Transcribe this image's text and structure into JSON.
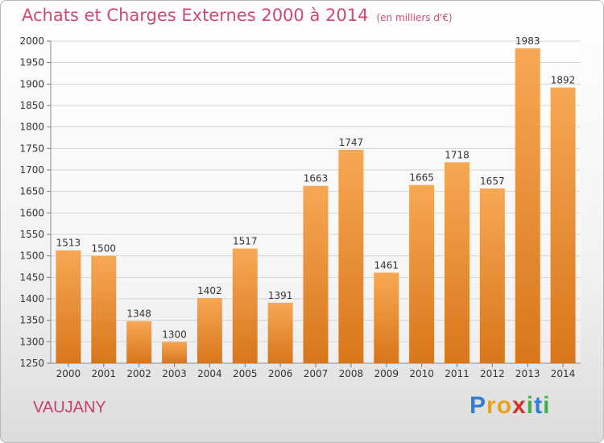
{
  "header": {
    "title": "Achats et Charges Externes 2000 à 2014",
    "unit": "(en milliers d'€)"
  },
  "place": "VAUJANY",
  "brand": {
    "letters": [
      "P",
      "r",
      "o",
      "x",
      "i",
      "t",
      "i"
    ],
    "colors": [
      "#2e7fd3",
      "#e7a21b",
      "#e7a21b",
      "#d6322c",
      "#3db34a",
      "#2e7fd3",
      "#3db34a"
    ]
  },
  "colors": {
    "bar_top": "#f7a854",
    "bar_bottom": "#d9761b",
    "title": "#d2496f"
  },
  "chart_data": {
    "type": "bar",
    "title": "Achats et Charges Externes 2000 à 2014",
    "xlabel": "",
    "ylabel": "",
    "categories": [
      "2000",
      "2001",
      "2002",
      "2003",
      "2004",
      "2005",
      "2006",
      "2007",
      "2008",
      "2009",
      "2010",
      "2011",
      "2012",
      "2013",
      "2014"
    ],
    "values": [
      1513,
      1500,
      1348,
      1300,
      1402,
      1517,
      1391,
      1663,
      1747,
      1461,
      1665,
      1718,
      1657,
      1983,
      1892
    ],
    "ylim": [
      1250,
      2000
    ],
    "yticks": [
      1250,
      1300,
      1350,
      1400,
      1450,
      1500,
      1550,
      1600,
      1650,
      1700,
      1750,
      1800,
      1850,
      1900,
      1950,
      2000
    ],
    "grid": true,
    "legend": "none"
  }
}
